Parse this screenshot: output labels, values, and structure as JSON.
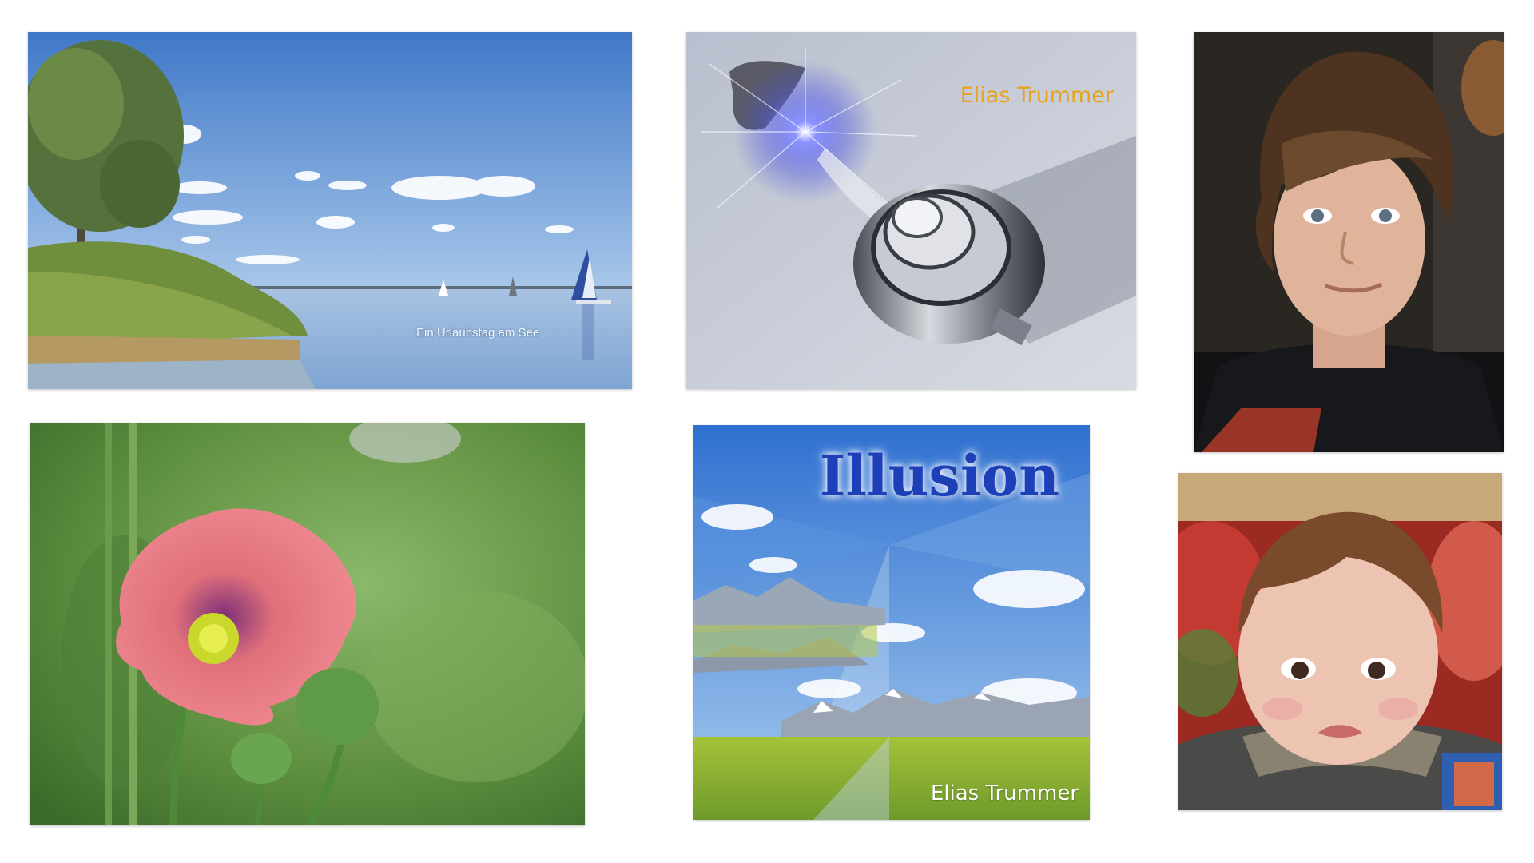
{
  "photos": {
    "lake": {
      "caption": "Ein Urlaubstag am See"
    },
    "bulb": {
      "caption": "Elias Trummer"
    },
    "boy": {},
    "poppy": {},
    "illusion": {
      "title": "Illusion",
      "signature": "Elias Trummer"
    },
    "baby": {}
  },
  "colors": {
    "background": "#ffffff",
    "sky": "#4f86cf",
    "bulb_caption": "#e8a31a",
    "illusion_title": "#1d3fb8"
  }
}
